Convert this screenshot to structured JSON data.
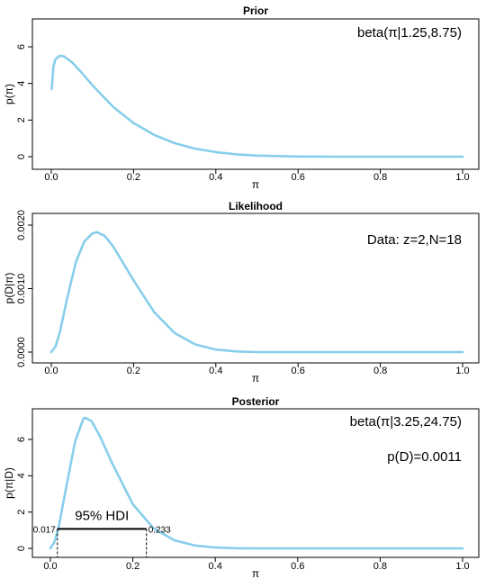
{
  "chart_data": [
    {
      "type": "line",
      "title": "Prior",
      "xlabel": "π",
      "ylabel": "p(π)",
      "xlim": [
        0,
        1
      ],
      "ylim": [
        0,
        6.4
      ],
      "xticks": [
        "0.0",
        "0.2",
        "0.4",
        "0.6",
        "0.8",
        "1.0"
      ],
      "yticks": [
        "0",
        "2",
        "4",
        "6"
      ],
      "annotations": [
        "beta(π|1.25,8.75)"
      ],
      "line_color": "#87CEEB",
      "series": [
        {
          "x": [
            0.001,
            0.005,
            0.01,
            0.02,
            0.03,
            0.05,
            0.075,
            0.1,
            0.15,
            0.2,
            0.25,
            0.3,
            0.35,
            0.4,
            0.45,
            0.5,
            0.6,
            0.7,
            0.8,
            0.9,
            1.0
          ],
          "values": [
            3.7,
            4.92,
            5.32,
            5.51,
            5.49,
            5.17,
            4.56,
            3.9,
            2.73,
            1.84,
            1.19,
            0.74,
            0.44,
            0.25,
            0.13,
            0.06,
            0.01,
            0.0,
            0.0,
            0.0,
            0.0
          ]
        }
      ]
    },
    {
      "type": "line",
      "title": "Likelihood",
      "xlabel": "π",
      "ylabel": "p(D|π)",
      "xlim": [
        0,
        1
      ],
      "ylim": [
        0,
        0.002
      ],
      "xticks": [
        "0.0",
        "0.2",
        "0.4",
        "0.6",
        "0.8",
        "1.0"
      ],
      "yticks": [
        "0.0000",
        "0.0010",
        "0.0020"
      ],
      "annotations": [
        "Data: z=2,N=18"
      ],
      "line_color": "#87CEEB",
      "series": [
        {
          "x": [
            0.0,
            0.01,
            0.02,
            0.04,
            0.06,
            0.08,
            0.1,
            0.111,
            0.13,
            0.15,
            0.2,
            0.25,
            0.3,
            0.35,
            0.4,
            0.45,
            0.5,
            0.6,
            0.7,
            0.8,
            0.9,
            1.0
          ],
          "values": [
            0.0,
            8.5e-05,
            0.00029,
            0.00089,
            0.00142,
            0.00174,
            0.00187,
            0.00189,
            0.00183,
            0.00167,
            0.00113,
            0.00063,
            0.0003,
            0.00012,
            4e-05,
            1e-05,
            0.0,
            0.0,
            0.0,
            0.0,
            0.0,
            0.0
          ]
        }
      ]
    },
    {
      "type": "line",
      "title": "Posterior",
      "xlabel": "π",
      "ylabel": "p(π|D)",
      "xlim": [
        0,
        1
      ],
      "ylim": [
        0,
        7.4
      ],
      "xticks": [
        "0.0",
        "0.2",
        "0.4",
        "0.6",
        "0.8",
        "1.0"
      ],
      "yticks": [
        "0",
        "2",
        "4",
        "6"
      ],
      "annotations": [
        "beta(π|3.25,24.75)",
        "p(D)=0.0011"
      ],
      "hdi": {
        "label": "95% HDI",
        "low": 0.017,
        "high": 0.233,
        "low_label": "0.017",
        "high_label": "0.233",
        "height": 1.07
      },
      "line_color": "#87CEEB",
      "series": [
        {
          "x": [
            0.0,
            0.01,
            0.02,
            0.04,
            0.06,
            0.08,
            0.085,
            0.1,
            0.12,
            0.15,
            0.2,
            0.25,
            0.3,
            0.35,
            0.4,
            0.45,
            0.5,
            0.6,
            0.7,
            0.8,
            0.9,
            1.0
          ],
          "values": [
            0.0,
            0.36,
            1.17,
            3.56,
            5.89,
            7.14,
            7.19,
            7.0,
            6.18,
            4.68,
            2.43,
            1.11,
            0.45,
            0.16,
            0.05,
            0.01,
            0.0,
            0.0,
            0.0,
            0.0,
            0.0,
            0.0
          ]
        }
      ]
    }
  ]
}
